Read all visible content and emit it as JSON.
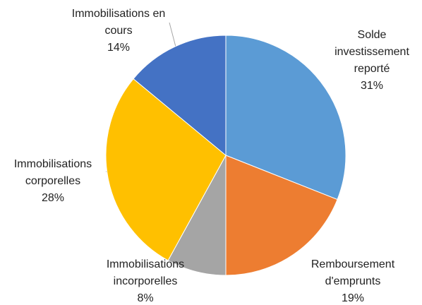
{
  "chart_data": {
    "type": "pie",
    "categories": [
      "Solde investissement reporté",
      "Remboursement d'emprunts",
      "Immobilisations incorporelles",
      "Immobilisations corporelles",
      "Immobilisations en cours"
    ],
    "values": [
      31,
      19,
      8,
      28,
      14
    ],
    "value_labels": [
      "31%",
      "19%",
      "8%",
      "28%",
      "14%"
    ],
    "colors": [
      "#5b9bd5",
      "#ed7d31",
      "#a5a5a5",
      "#ffc000",
      "#4472c4"
    ]
  }
}
